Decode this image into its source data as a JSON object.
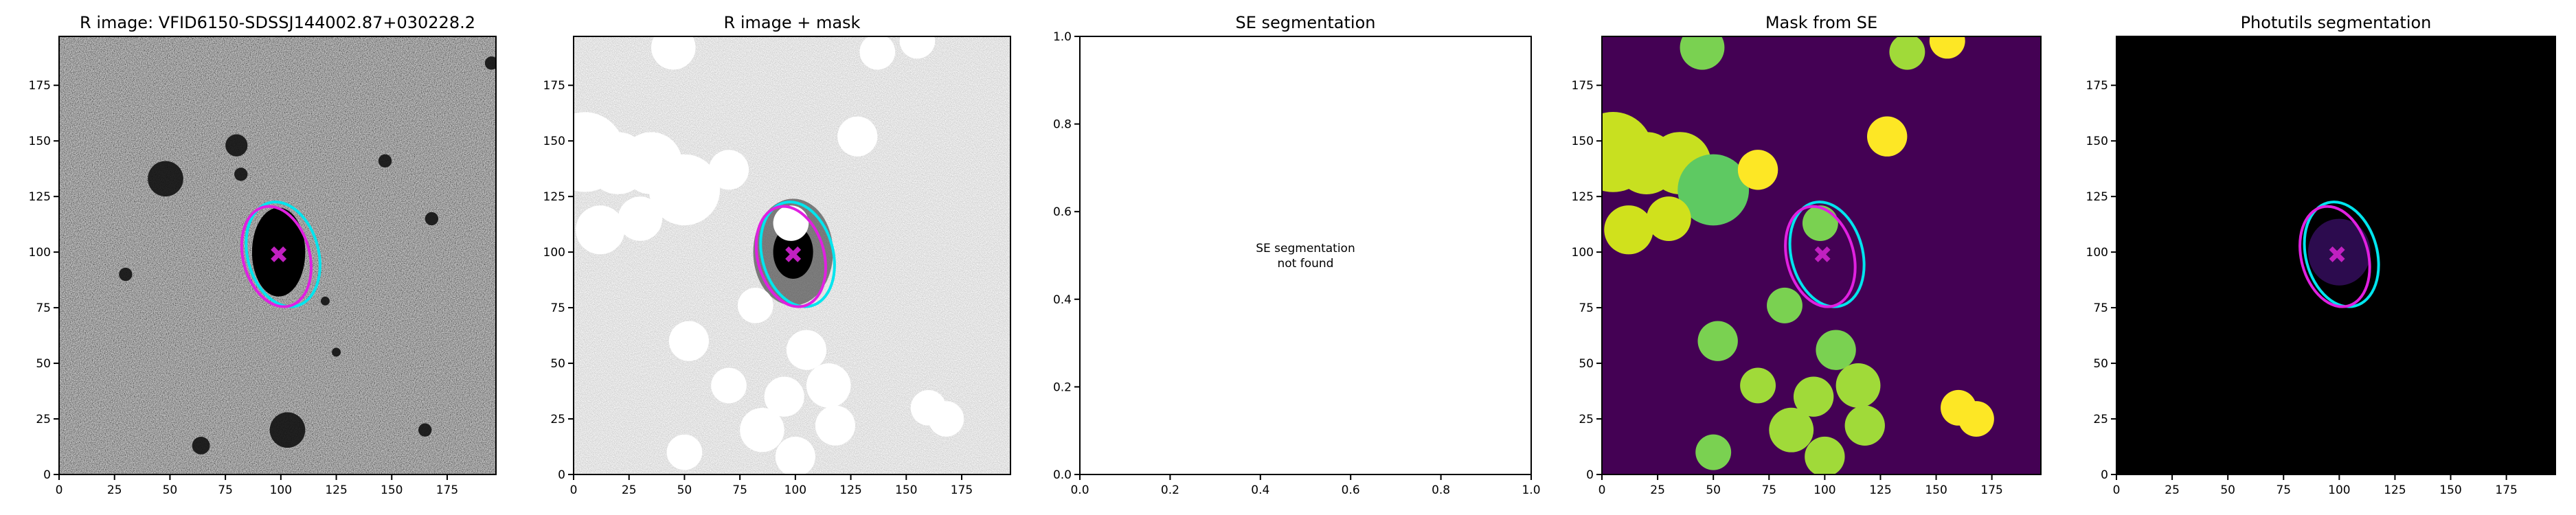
{
  "chart_data": [
    {
      "type": "image",
      "title": "R image: VFID6150-SDSSJ144002.87+030228.2",
      "cmap": "gray",
      "xlim": [
        0,
        197
      ],
      "ylim": [
        0,
        197
      ],
      "xticks": [
        0,
        25,
        50,
        75,
        100,
        125,
        150,
        175
      ],
      "yticks": [
        0,
        25,
        50,
        75,
        100,
        125,
        150,
        175
      ],
      "ellipses": [
        {
          "color": "#00e5ee",
          "x": 101,
          "y": 99,
          "width": 32,
          "height": 48,
          "angle": 15
        },
        {
          "color": "#e020e0",
          "x": 98,
          "y": 98,
          "width": 30,
          "height": 46,
          "angle": 15
        }
      ],
      "marker": {
        "x": 99,
        "y": 99,
        "color": "#c020c0"
      }
    },
    {
      "type": "image",
      "title": "R image + mask",
      "cmap": "gray_r",
      "xlim": [
        0,
        197
      ],
      "ylim": [
        0,
        197
      ],
      "xticks": [
        0,
        25,
        50,
        75,
        100,
        125,
        150,
        175
      ],
      "yticks": [
        0,
        25,
        50,
        75,
        100,
        125,
        150,
        175
      ],
      "ellipses": [
        {
          "color": "#00e5ee",
          "x": 101,
          "y": 99,
          "width": 32,
          "height": 48,
          "angle": 15
        },
        {
          "color": "#e020e0",
          "x": 98,
          "y": 98,
          "width": 30,
          "height": 46,
          "angle": 15
        }
      ],
      "marker": {
        "x": 99,
        "y": 99,
        "color": "#c020c0"
      }
    },
    {
      "type": "text",
      "title": "SE segmentation",
      "annotation": [
        "SE segmentation",
        "not found"
      ],
      "xlim": [
        0,
        1
      ],
      "ylim": [
        0,
        1
      ],
      "xticks": [
        {
          "value": 0,
          "label": "0.0"
        },
        {
          "value": 0.2,
          "label": "0.2"
        },
        {
          "value": 0.4,
          "label": "0.4"
        },
        {
          "value": 0.6,
          "label": "0.6"
        },
        {
          "value": 0.8,
          "label": "0.8"
        },
        {
          "value": 1,
          "label": "1.0"
        }
      ],
      "yticks": [
        {
          "value": 0,
          "label": "0.0"
        },
        {
          "value": 0.2,
          "label": "0.2"
        },
        {
          "value": 0.4,
          "label": "0.4"
        },
        {
          "value": 0.6,
          "label": "0.6"
        },
        {
          "value": 0.8,
          "label": "0.8"
        },
        {
          "value": 1,
          "label": "1.0"
        }
      ]
    },
    {
      "type": "image",
      "title": "Mask from SE",
      "cmap": "viridis",
      "xlim": [
        0,
        197
      ],
      "ylim": [
        0,
        197
      ],
      "xticks": [
        0,
        25,
        50,
        75,
        100,
        125,
        150,
        175
      ],
      "yticks": [
        0,
        25,
        50,
        75,
        100,
        125,
        150,
        175
      ],
      "ellipses": [
        {
          "color": "#00e5ee",
          "x": 101,
          "y": 99,
          "width": 32,
          "height": 48,
          "angle": 15
        },
        {
          "color": "#e020e0",
          "x": 98,
          "y": 98,
          "width": 30,
          "height": 46,
          "angle": 15
        }
      ],
      "marker": {
        "x": 99,
        "y": 99,
        "color": "#c020c0"
      }
    },
    {
      "type": "image",
      "title": "Photutils segmentation",
      "cmap": "black",
      "xlim": [
        0,
        197
      ],
      "ylim": [
        0,
        197
      ],
      "xticks": [
        0,
        25,
        50,
        75,
        100,
        125,
        150,
        175
      ],
      "yticks": [
        0,
        25,
        50,
        75,
        100,
        125,
        150,
        175
      ],
      "ellipses": [
        {
          "color": "#00e5ee",
          "x": 101,
          "y": 99,
          "width": 32,
          "height": 48,
          "angle": 15
        },
        {
          "color": "#e020e0",
          "x": 98,
          "y": 98,
          "width": 30,
          "height": 46,
          "angle": 15
        }
      ],
      "marker": {
        "x": 99,
        "y": 99,
        "color": "#c020c0"
      }
    }
  ]
}
